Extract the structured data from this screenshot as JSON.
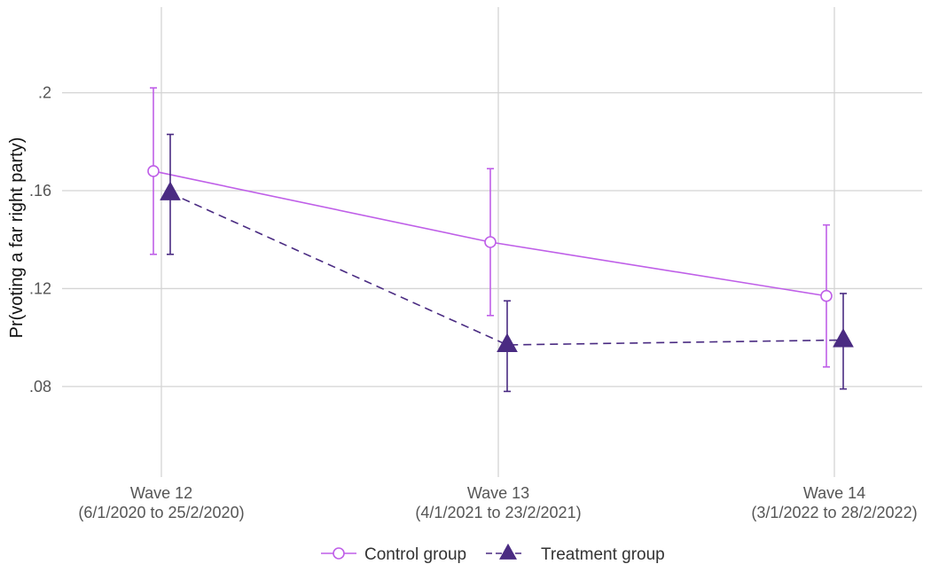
{
  "chart_data": {
    "type": "line",
    "title": "",
    "xlabel": "",
    "ylabel": "Pr(voting a far right party)",
    "categories": [
      {
        "line1": "Wave 12",
        "line2": "(6/1/2020 to 25/2/2020)"
      },
      {
        "line1": "Wave 13",
        "line2": "(4/1/2021 to 23/2/2021)"
      },
      {
        "line1": "Wave 14",
        "line2": "(3/1/2022 to 28/2/2022)"
      }
    ],
    "yticks": [
      {
        "value": 0.08,
        "label": ".08"
      },
      {
        "value": 0.12,
        "label": ".12"
      },
      {
        "value": 0.16,
        "label": ".16"
      },
      {
        "value": 0.2,
        "label": ".2"
      }
    ],
    "ylim": [
      0.043,
      0.235
    ],
    "grid": true,
    "legend_position": "bottom",
    "series": [
      {
        "name": "Control group",
        "color": "#bf5fe8",
        "marker": "open-circle",
        "line_style": "solid",
        "values": [
          0.168,
          0.139,
          0.117
        ],
        "lower": [
          0.134,
          0.109,
          0.088
        ],
        "upper": [
          0.202,
          0.169,
          0.146
        ]
      },
      {
        "name": "Treatment group",
        "color": "#4a2b82",
        "marker": "filled-triangle",
        "line_style": "dashed",
        "values": [
          0.159,
          0.097,
          0.099
        ],
        "lower": [
          0.134,
          0.078,
          0.079
        ],
        "upper": [
          0.183,
          0.115,
          0.118
        ]
      }
    ]
  }
}
